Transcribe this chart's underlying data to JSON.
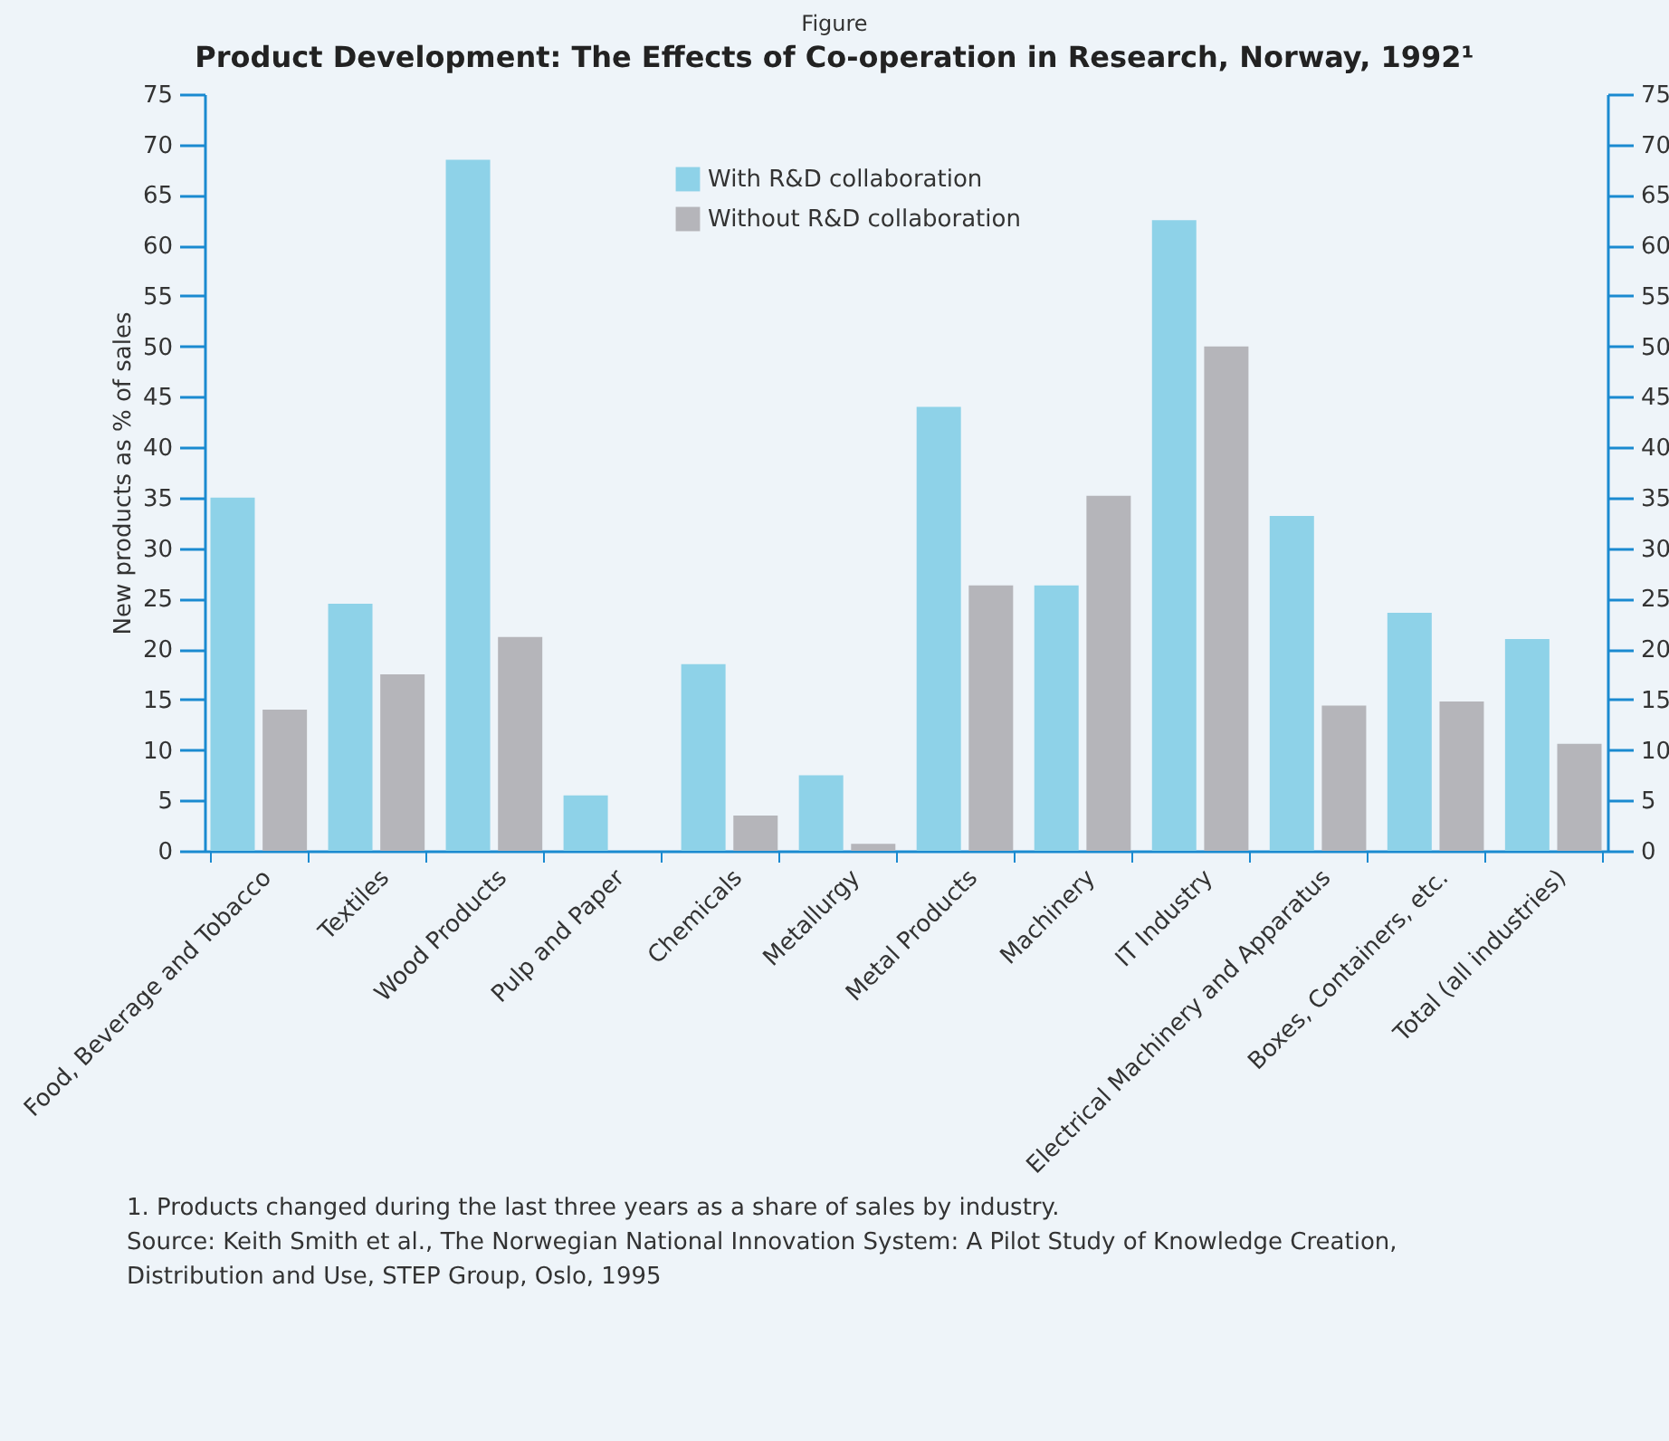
{
  "chart_data": {
    "type": "bar",
    "subtitle": "Figure",
    "title": "Product Development: The Effects of Co-operation in Research, Norway, 1992¹",
    "ylabel": "New products as % of sales",
    "categories": [
      "Food, Beverage and Tobacco",
      "Textiles",
      "Wood Products",
      "Pulp and Paper",
      "Chemicals",
      "Metallurgy",
      "Metal Products",
      "Machinery",
      "IT Industry",
      "Electrical Machinery and Apparatus",
      "Boxes, Containers, etc.",
      "Total (all industries)"
    ],
    "series": [
      {
        "name": "With R&D collaboration",
        "color": "#8ed2e8",
        "values": [
          35,
          24.5,
          68.5,
          5.5,
          18.5,
          7.5,
          44,
          26.3,
          62.5,
          33.2,
          23.6,
          21
        ]
      },
      {
        "name": "Without R&D collaboration",
        "color": "#b5b5ba",
        "values": [
          14,
          17.5,
          21.2,
          0,
          3.5,
          0.7,
          26.3,
          35.2,
          50,
          14.4,
          14.8,
          10.6
        ]
      }
    ],
    "ylim": [
      0,
      75
    ],
    "yticks": [
      0,
      5,
      10,
      15,
      20,
      25,
      30,
      35,
      40,
      45,
      50,
      55,
      60,
      65,
      70,
      75
    ],
    "y2lim": [
      0,
      75
    ],
    "y2ticks": [
      0,
      5,
      10,
      15,
      20,
      25,
      30,
      35,
      40,
      45,
      50,
      55,
      60,
      65,
      70,
      75
    ],
    "legend": "top",
    "grid": false,
    "annotations": [
      "1. Products changed during the last three years as a share of sales by industry.",
      "Source: Keith Smith et al., The Norwegian National Innovation System: A Pilot Study of Knowledge Creation, Distribution and Use, STEP Group, Oslo, 1995"
    ]
  }
}
